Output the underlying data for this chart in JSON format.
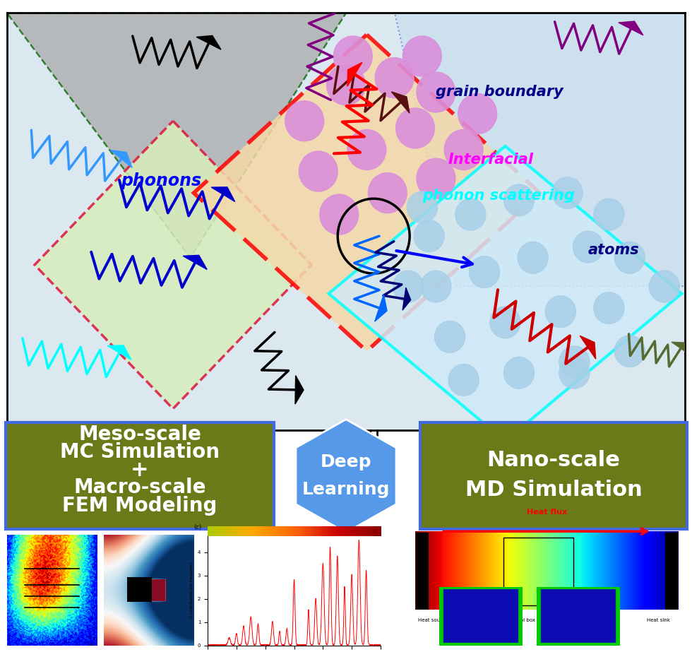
{
  "fig_width": 9.8,
  "fig_height": 9.23,
  "dpi": 100,
  "bg_color": "#ffffff",
  "main_panel_bg": "#dce8f0",
  "gray_tri_color": "#aaaaaa",
  "gray_tri_alpha": 0.75,
  "lightblue_rect_color": "#c5dced",
  "green_diamond_color": "#d8edbb",
  "peach_diamond_color": "#f5d8a8",
  "blue_diamond_color": "#d0eaf8",
  "olive_color": "#6b7a18",
  "blue_hex_color": "#5599e8",
  "phonons_text": "phonons",
  "grain_text": "grain boundary",
  "interfacial1": "Interfacial",
  "interfacial2": "phonon scattering",
  "atoms_text": "atoms",
  "box1_lines": [
    "Meso-scale",
    "MC Simulation",
    "+",
    "Macro-scale",
    "FEM Modeling"
  ],
  "box2_lines": [
    "Deep",
    "Learning"
  ],
  "box3_lines": [
    "Nano-scale",
    "MD Simulation"
  ]
}
